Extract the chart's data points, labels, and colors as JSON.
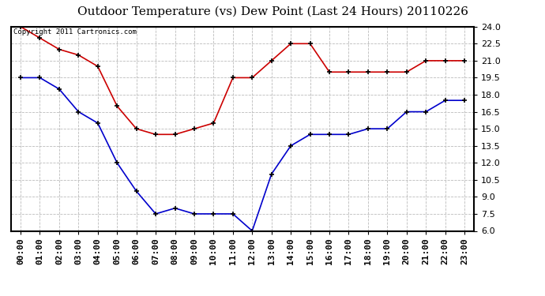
{
  "title": "Outdoor Temperature (vs) Dew Point (Last 24 Hours) 20110226",
  "copyright": "Copyright 2011 Cartronics.com",
  "x_labels": [
    "00:00",
    "01:00",
    "02:00",
    "03:00",
    "04:00",
    "05:00",
    "06:00",
    "07:00",
    "08:00",
    "09:00",
    "10:00",
    "11:00",
    "12:00",
    "13:00",
    "14:00",
    "15:00",
    "16:00",
    "17:00",
    "18:00",
    "19:00",
    "20:00",
    "21:00",
    "22:00",
    "23:00"
  ],
  "temp_data": [
    24.0,
    23.0,
    22.0,
    21.5,
    20.5,
    17.0,
    15.0,
    14.5,
    14.5,
    15.0,
    15.5,
    19.5,
    19.5,
    21.0,
    22.5,
    22.5,
    20.0,
    20.0,
    20.0,
    20.0,
    20.0,
    21.0,
    21.0,
    21.0
  ],
  "dew_data": [
    19.5,
    19.5,
    18.5,
    16.5,
    15.5,
    12.0,
    9.5,
    7.5,
    8.0,
    7.5,
    7.5,
    7.5,
    6.0,
    11.0,
    13.5,
    14.5,
    14.5,
    14.5,
    15.0,
    15.0,
    16.5,
    16.5,
    17.5,
    17.5
  ],
  "temp_color": "#CC0000",
  "dew_color": "#0000CC",
  "bg_color": "#FFFFFF",
  "plot_bg_color": "#FFFFFF",
  "grid_color": "#BBBBBB",
  "ylim": [
    6.0,
    24.0
  ],
  "yticks": [
    6.0,
    7.5,
    9.0,
    10.5,
    12.0,
    13.5,
    15.0,
    16.5,
    18.0,
    19.5,
    21.0,
    22.5,
    24.0
  ],
  "title_fontsize": 11,
  "tick_fontsize": 8,
  "copyright_fontsize": 6.5
}
